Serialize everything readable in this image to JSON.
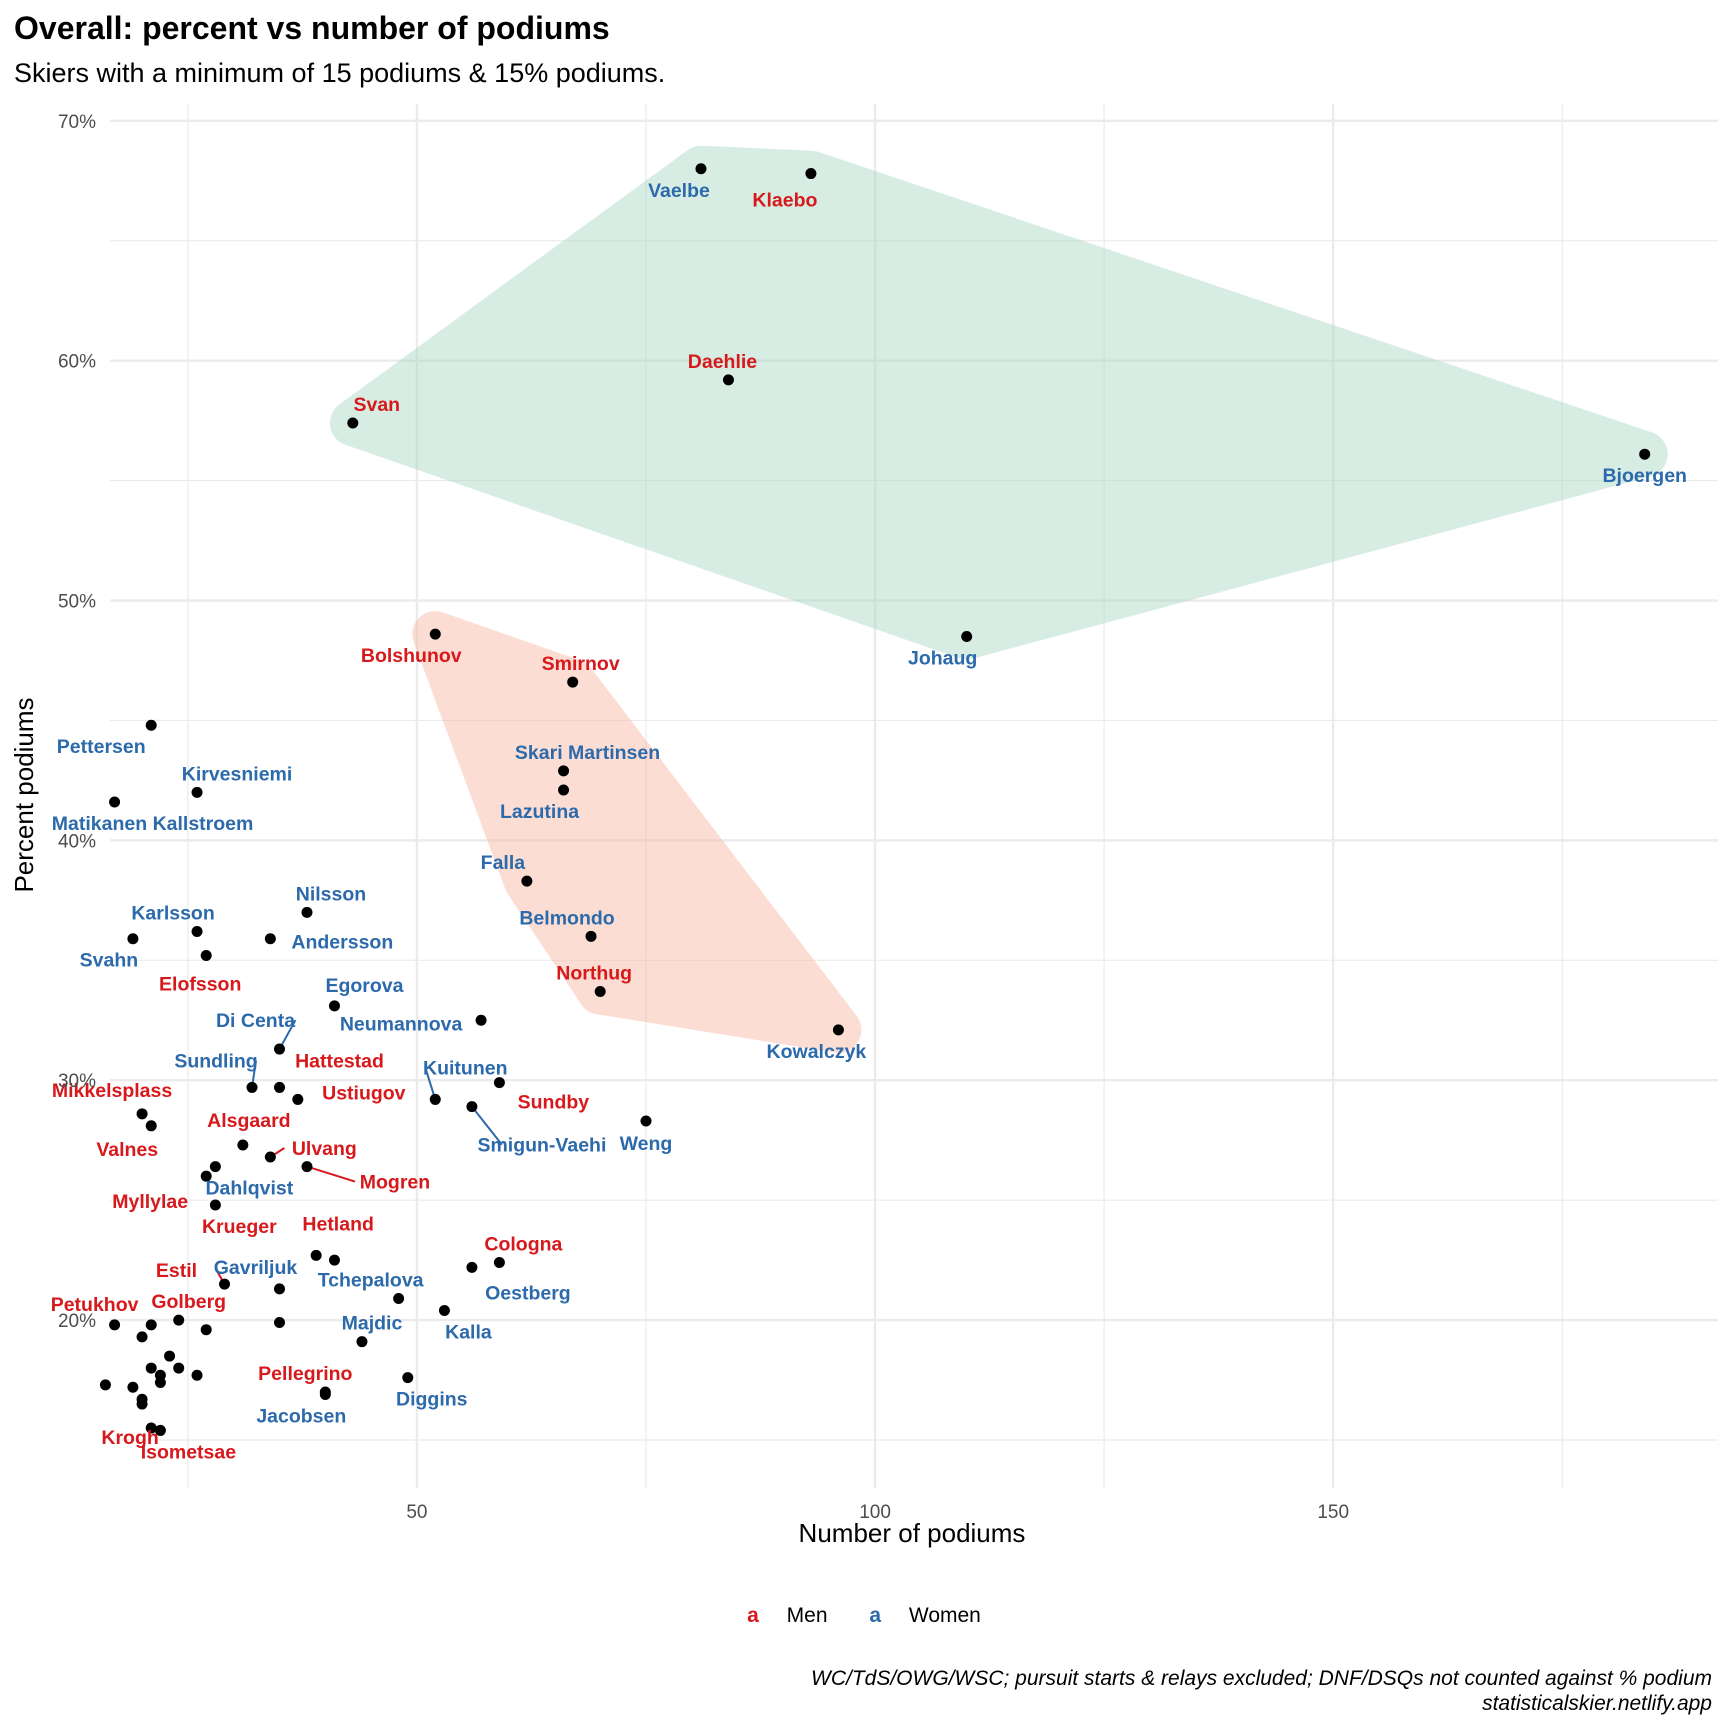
{
  "title": "Overall: percent vs number of podiums",
  "subtitle": "Skiers with a minimum of 15 podiums & 15% podiums.",
  "caption_line1": "WC/TdS/OWG/WSC; pursuit starts & relays excluded; DNF/DSQs not counted against % podium",
  "caption_line2": "statisticalskier.netlify.app",
  "colors": {
    "men": "#d7191c",
    "women": "#2c6aab",
    "points": "#000000",
    "hull_top": "#a8d9c4",
    "hull_mid": "#f9b59f",
    "grid": "#ebebeb"
  },
  "chart_data": {
    "type": "scatter",
    "xlabel": "Number of podiums",
    "ylabel": "Percent podiums",
    "xlim": [
      16.5,
      192
    ],
    "ylim": [
      0.13,
      0.707
    ],
    "x_ticks": [
      50,
      100,
      150
    ],
    "y_ticks": [
      0.2,
      0.3,
      0.4,
      0.5,
      0.6,
      0.7
    ],
    "y_tick_labels": [
      "20%",
      "30%",
      "40%",
      "50%",
      "60%",
      "70%"
    ],
    "grid": true,
    "legend_position": "bottom",
    "legend": [
      {
        "key": "a",
        "label": "Men",
        "group": "men"
      },
      {
        "key": "a",
        "label": "Women",
        "group": "women"
      }
    ],
    "hulls": [
      {
        "color": "hull_top",
        "members": [
          "Svan",
          "Vaelbe",
          "Klaebo",
          "Bjoergen",
          "Johaug"
        ]
      },
      {
        "color": "hull_mid",
        "members": [
          "Bolshunov",
          "Smirnov",
          "Skari Martinsen",
          "Lazutina",
          "Falla",
          "Northug",
          "Kowalczyk"
        ]
      }
    ],
    "points": [
      {
        "x": 81,
        "y": 0.68,
        "label": "Vaelbe",
        "group": "women"
      },
      {
        "x": 93,
        "y": 0.678,
        "label": "Klaebo",
        "group": "men"
      },
      {
        "x": 84,
        "y": 0.592,
        "label": "Daehlie",
        "group": "men"
      },
      {
        "x": 43,
        "y": 0.574,
        "label": "Svan",
        "group": "men"
      },
      {
        "x": 184,
        "y": 0.561,
        "label": "Bjoergen",
        "group": "women"
      },
      {
        "x": 52,
        "y": 0.486,
        "label": "Bolshunov",
        "group": "men"
      },
      {
        "x": 110,
        "y": 0.485,
        "label": "Johaug",
        "group": "women"
      },
      {
        "x": 67,
        "y": 0.466,
        "label": "Smirnov",
        "group": "men"
      },
      {
        "x": 21,
        "y": 0.448,
        "label": "Pettersen",
        "group": "women"
      },
      {
        "x": 66,
        "y": 0.429,
        "label": "Skari Martinsen",
        "group": "women"
      },
      {
        "x": 26,
        "y": 0.42,
        "label": "Kirvesniemi",
        "group": "women"
      },
      {
        "x": 66,
        "y": 0.421,
        "label": "Lazutina",
        "group": "women"
      },
      {
        "x": 17,
        "y": 0.416,
        "label": "Matikanen Kallstroem",
        "group": "women"
      },
      {
        "x": 62,
        "y": 0.383,
        "label": "Falla",
        "group": "women"
      },
      {
        "x": 38,
        "y": 0.37,
        "label": "Nilsson",
        "group": "women"
      },
      {
        "x": 26,
        "y": 0.362,
        "label": "Karlsson",
        "group": "women"
      },
      {
        "x": 69,
        "y": 0.36,
        "label": "Belmondo",
        "group": "women"
      },
      {
        "x": 34,
        "y": 0.359,
        "label": "Andersson",
        "group": "women"
      },
      {
        "x": 19,
        "y": 0.359,
        "label": "Svahn",
        "group": "women"
      },
      {
        "x": 27,
        "y": 0.352,
        "label": "Elofsson",
        "group": "men"
      },
      {
        "x": 70,
        "y": 0.337,
        "label": "Northug",
        "group": "men"
      },
      {
        "x": 41,
        "y": 0.331,
        "label": "Egorova",
        "group": "women"
      },
      {
        "x": 57,
        "y": 0.325,
        "label": "Neumannova",
        "group": "women"
      },
      {
        "x": 96,
        "y": 0.321,
        "label": "Kowalczyk",
        "group": "women"
      },
      {
        "x": 35,
        "y": 0.313,
        "label": "Di Centa",
        "group": "women"
      },
      {
        "x": 32,
        "y": 0.297,
        "label": "Sundling",
        "group": "women"
      },
      {
        "x": 35,
        "y": 0.297,
        "label": "Hattestad",
        "group": "men"
      },
      {
        "x": 37,
        "y": 0.292,
        "label": "Ustiugov",
        "group": "men"
      },
      {
        "x": 59,
        "y": 0.299,
        "label": "Sundby",
        "group": "men"
      },
      {
        "x": 52,
        "y": 0.292,
        "label": "Kuitunen",
        "group": "women"
      },
      {
        "x": 56,
        "y": 0.289,
        "label": "Smigun-Vaehi",
        "group": "women"
      },
      {
        "x": 75,
        "y": 0.283,
        "label": "Weng",
        "group": "women"
      },
      {
        "x": 20,
        "y": 0.286,
        "label": "Mikkelsplass",
        "group": "men"
      },
      {
        "x": 21,
        "y": 0.281,
        "label": "Valnes",
        "group": "men"
      },
      {
        "x": 31,
        "y": 0.273,
        "label": "Alsgaard",
        "group": "men"
      },
      {
        "x": 34,
        "y": 0.268,
        "label": "Ulvang",
        "group": "men"
      },
      {
        "x": 38,
        "y": 0.264,
        "label": "Mogren",
        "group": "men"
      },
      {
        "x": 28,
        "y": 0.264,
        "label": "Dahlqvist",
        "group": "women"
      },
      {
        "x": 27,
        "y": 0.26,
        "label": "Myllylae",
        "group": "men"
      },
      {
        "x": 28,
        "y": 0.248,
        "label": "Krueger",
        "group": "men"
      },
      {
        "x": 39,
        "y": 0.227,
        "label": "Hetland",
        "group": "men"
      },
      {
        "x": 41,
        "y": 0.225,
        "label": "",
        "group": "men"
      },
      {
        "x": 59,
        "y": 0.224,
        "label": "Cologna",
        "group": "men"
      },
      {
        "x": 56,
        "y": 0.222,
        "label": "Oestberg",
        "group": "women"
      },
      {
        "x": 29,
        "y": 0.215,
        "label": "Estil",
        "group": "men"
      },
      {
        "x": 35,
        "y": 0.213,
        "label": "Gavriljuk",
        "group": "women"
      },
      {
        "x": 48,
        "y": 0.209,
        "label": "Tchepalova",
        "group": "women"
      },
      {
        "x": 53,
        "y": 0.204,
        "label": "Kalla",
        "group": "women"
      },
      {
        "x": 17,
        "y": 0.198,
        "label": "Petukhov",
        "group": "men"
      },
      {
        "x": 21,
        "y": 0.198,
        "label": "",
        "group": "men"
      },
      {
        "x": 24,
        "y": 0.2,
        "label": "Golberg",
        "group": "men"
      },
      {
        "x": 27,
        "y": 0.196,
        "label": "",
        "group": "women"
      },
      {
        "x": 20,
        "y": 0.193,
        "label": "",
        "group": "men"
      },
      {
        "x": 35,
        "y": 0.199,
        "label": "",
        "group": "women"
      },
      {
        "x": 44,
        "y": 0.191,
        "label": "Majdic",
        "group": "women"
      },
      {
        "x": 23,
        "y": 0.185,
        "label": "",
        "group": "men"
      },
      {
        "x": 21,
        "y": 0.18,
        "label": "",
        "group": "men"
      },
      {
        "x": 24,
        "y": 0.18,
        "label": "",
        "group": "men"
      },
      {
        "x": 22,
        "y": 0.177,
        "label": "",
        "group": "men"
      },
      {
        "x": 26,
        "y": 0.177,
        "label": "",
        "group": "men"
      },
      {
        "x": 49,
        "y": 0.176,
        "label": "Diggins",
        "group": "women"
      },
      {
        "x": 16,
        "y": 0.173,
        "label": "",
        "group": "men"
      },
      {
        "x": 19,
        "y": 0.172,
        "label": "",
        "group": "men"
      },
      {
        "x": 22,
        "y": 0.174,
        "label": "",
        "group": "men"
      },
      {
        "x": 40,
        "y": 0.17,
        "label": "Pellegrino",
        "group": "men"
      },
      {
        "x": 20,
        "y": 0.167,
        "label": "",
        "group": "men"
      },
      {
        "x": 20,
        "y": 0.165,
        "label": "Krogh",
        "group": "men"
      },
      {
        "x": 40,
        "y": 0.169,
        "label": "Jacobsen",
        "group": "women"
      },
      {
        "x": 21,
        "y": 0.155,
        "label": "",
        "group": "men"
      },
      {
        "x": 22,
        "y": 0.154,
        "label": "Isometsae",
        "group": "men"
      }
    ]
  }
}
